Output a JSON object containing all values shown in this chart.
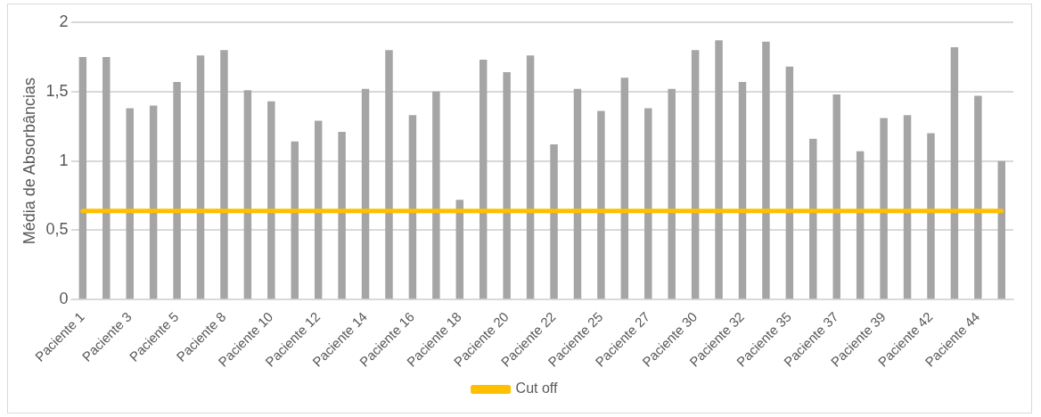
{
  "chart_data": {
    "type": "bar",
    "ylabel": "Média de Absorbâncias",
    "categories": [
      "Paciente 1",
      null,
      "Paciente 3",
      null,
      "Paciente 5",
      null,
      "Paciente 8",
      null,
      "Paciente 10",
      null,
      "Paciente 12",
      null,
      "Paciente 14",
      null,
      "Paciente 16",
      null,
      "Paciente 18",
      null,
      "Paciente 20",
      null,
      "Paciente 22",
      null,
      "Paciente 25",
      null,
      "Paciente 27",
      null,
      "Paciente 30",
      null,
      "Paciente 32",
      null,
      "Paciente 35",
      null,
      "Paciente 37",
      null,
      "Paciente 39",
      null,
      "Paciente 42",
      null,
      "Paciente 44",
      null
    ],
    "series": [
      {
        "color": "#a5a5a5",
        "values": [
          1.75,
          1.75,
          1.38,
          1.4,
          1.57,
          1.76,
          1.8,
          1.51,
          1.43,
          1.14,
          1.29,
          1.21,
          1.52,
          1.8,
          1.33,
          1.5,
          0.72,
          1.73,
          1.64,
          1.76,
          1.12,
          1.52,
          1.36,
          1.6,
          1.38,
          1.52,
          1.8,
          1.87,
          1.57,
          1.86,
          1.68,
          1.16,
          1.48,
          1.07,
          1.31,
          1.33,
          1.2,
          1.82,
          1.47,
          1.0
        ]
      },
      {
        "type": "line",
        "name": "Cut off",
        "color": "#ffc000",
        "values": [
          0.64,
          0.64,
          0.64,
          0.64,
          0.64,
          0.64,
          0.64,
          0.64,
          0.64,
          0.64,
          0.64,
          0.64,
          0.64,
          0.64,
          0.64,
          0.64,
          0.64,
          0.64,
          0.64,
          0.64,
          0.64,
          0.64,
          0.64,
          0.64,
          0.64,
          0.64,
          0.64,
          0.64,
          0.64,
          0.64,
          0.64,
          0.64,
          0.64,
          0.64,
          0.64,
          0.64,
          0.64,
          0.64,
          0.64,
          0.64
        ]
      }
    ],
    "ylim": [
      0,
      2
    ],
    "yticks": [
      0,
      {
        "value": 0.5,
        "label": "0,5"
      },
      1,
      {
        "value": 1.5,
        "label": "1,5"
      },
      2
    ],
    "grid": "y",
    "legend": "bottom",
    "marker": "none"
  }
}
